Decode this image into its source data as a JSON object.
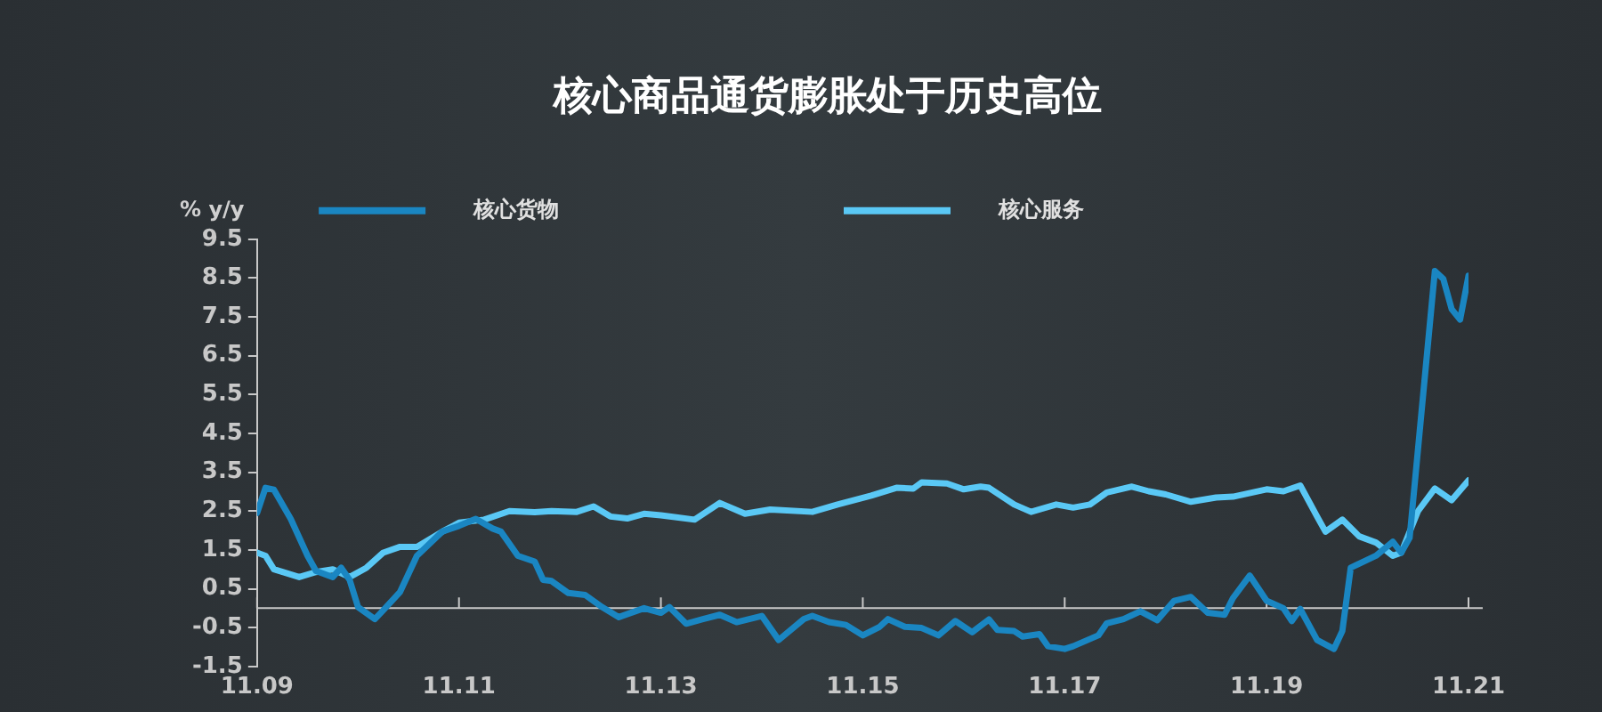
{
  "chart_data": {
    "type": "line",
    "title": "核心商品通货膨胀处于历史高位",
    "ylabel": "% y/y",
    "series": [
      {
        "name": "核心货物",
        "color": "#1a86c2",
        "x": [
          "2009-11",
          "2009-12",
          "2010-01",
          "2010-03",
          "2010-05",
          "2010-06",
          "2010-08",
          "2010-09",
          "2010-10",
          "2010-11",
          "2011-01",
          "2011-02",
          "2011-04",
          "2011-06",
          "2011-09",
          "2011-11",
          "2012-01",
          "2012-03",
          "2012-04",
          "2012-06",
          "2012-08",
          "2012-09",
          "2012-10",
          "2012-12",
          "2013-02",
          "2013-04",
          "2013-06",
          "2013-09",
          "2013-11",
          "2013-12",
          "2014-02",
          "2014-04",
          "2014-06",
          "2014-08",
          "2014-11",
          "2015-01",
          "2015-04",
          "2015-05",
          "2015-07",
          "2015-09",
          "2015-11",
          "2016-01",
          "2016-02",
          "2016-04",
          "2016-06",
          "2016-08",
          "2016-10",
          "2016-12",
          "2017-02",
          "2017-03",
          "2017-05",
          "2017-06",
          "2017-08",
          "2017-09",
          "2017-11",
          "2017-12",
          "2018-03",
          "2018-04",
          "2018-06",
          "2018-08",
          "2018-10",
          "2018-12",
          "2019-02",
          "2019-04",
          "2019-06",
          "2019-07",
          "2019-09",
          "2019-11",
          "2020-01",
          "2020-02",
          "2020-03",
          "2020-05",
          "2020-07",
          "2020-08",
          "2020-09",
          "2020-12",
          "2021-02",
          "2021-03",
          "2021-04",
          "2021-07",
          "2021-08",
          "2021-09",
          "2021-10",
          "2021-11"
        ],
        "values": [
          2.45,
          3.1,
          3.05,
          2.3,
          1.35,
          0.96,
          0.8,
          1.04,
          0.73,
          0.03,
          -0.28,
          -0.05,
          0.42,
          1.35,
          1.97,
          2.12,
          2.3,
          2.05,
          1.97,
          1.35,
          1.2,
          0.73,
          0.7,
          0.39,
          0.34,
          0.03,
          -0.23,
          0,
          -0.12,
          0.03,
          -0.4,
          -0.28,
          -0.17,
          -0.36,
          -0.2,
          -0.82,
          -0.28,
          -0.2,
          -0.36,
          -0.43,
          -0.7,
          -0.48,
          -0.28,
          -0.48,
          -0.51,
          -0.7,
          -0.33,
          -0.62,
          -0.29,
          -0.56,
          -0.59,
          -0.73,
          -0.67,
          -0.98,
          -1.05,
          -0.98,
          -0.7,
          -0.39,
          -0.28,
          -0.08,
          -0.31,
          0.19,
          0.29,
          -0.12,
          -0.17,
          0.26,
          0.84,
          0.19,
          0,
          -0.33,
          -0.02,
          -0.82,
          -1.05,
          -0.59,
          1.04,
          1.35,
          1.71,
          1.43,
          1.81,
          8.68,
          8.48,
          7.7,
          7.43,
          8.56
        ]
      },
      {
        "name": "核心服务",
        "color": "#5ac8f5",
        "x": [
          "2009-11",
          "2009-12",
          "2010-01",
          "2010-04",
          "2010-06",
          "2010-08",
          "2010-10",
          "2010-12",
          "2011-02",
          "2011-04",
          "2011-06",
          "2011-09",
          "2011-11",
          "2012-02",
          "2012-05",
          "2012-08",
          "2012-10",
          "2013-01",
          "2013-03",
          "2013-05",
          "2013-07",
          "2013-09",
          "2013-11",
          "2014-03",
          "2014-06",
          "2014-09",
          "2014-12",
          "2015-05",
          "2015-08",
          "2015-12",
          "2016-03",
          "2016-05",
          "2016-06",
          "2016-09",
          "2016-11",
          "2017-01",
          "2017-02",
          "2017-05",
          "2017-07",
          "2017-10",
          "2017-12",
          "2018-02",
          "2018-04",
          "2018-07",
          "2018-09",
          "2018-11",
          "2019-02",
          "2019-05",
          "2019-07",
          "2019-11",
          "2020-01",
          "2020-03",
          "2020-05",
          "2020-06",
          "2020-08",
          "2020-10",
          "2020-12",
          "2021-02",
          "2021-03",
          "2021-05",
          "2021-07",
          "2021-09",
          "2021-11"
        ],
        "values": [
          1.43,
          1.35,
          1.0,
          0.8,
          0.93,
          1.0,
          0.8,
          1.04,
          1.43,
          1.58,
          1.58,
          1.97,
          2.2,
          2.28,
          2.5,
          2.47,
          2.5,
          2.48,
          2.62,
          2.36,
          2.31,
          2.43,
          2.39,
          2.28,
          2.71,
          2.43,
          2.54,
          2.48,
          2.67,
          2.9,
          3.1,
          3.08,
          3.24,
          3.21,
          3.06,
          3.13,
          3.1,
          2.67,
          2.48,
          2.67,
          2.59,
          2.67,
          2.98,
          3.13,
          3.01,
          2.93,
          2.74,
          2.85,
          2.87,
          3.06,
          3.01,
          3.16,
          2.36,
          1.97,
          2.28,
          1.85,
          1.69,
          1.35,
          1.43,
          2.5,
          3.08,
          2.78,
          3.29
        ]
      }
    ],
    "xlim": [
      "2009-11",
      "2021-11"
    ],
    "xticks": [
      {
        "value": "2009-11",
        "label": "11.09"
      },
      {
        "value": "2011-11",
        "label": "11.11"
      },
      {
        "value": "2013-11",
        "label": "11.13"
      },
      {
        "value": "2015-11",
        "label": "11.15"
      },
      {
        "value": "2017-11",
        "label": "11.17"
      },
      {
        "value": "2019-11",
        "label": "11.19"
      },
      {
        "value": "2021-11",
        "label": "11.21"
      }
    ],
    "ylim": [
      -1.5,
      9.5
    ],
    "yticks": [
      -1.5,
      -0.5,
      0.5,
      1.5,
      2.5,
      3.5,
      4.5,
      5.5,
      6.5,
      7.5,
      8.5,
      9.5
    ],
    "ref_lines": [
      {
        "axis": "y",
        "value": 0,
        "color": "#c8c8c8"
      }
    ],
    "grid": false,
    "legend": "top",
    "marker": "none",
    "line_style": "solid"
  }
}
